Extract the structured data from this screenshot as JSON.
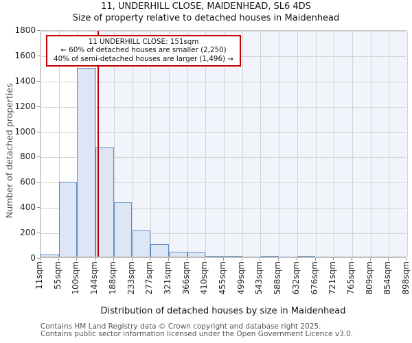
{
  "chart_data": {
    "type": "bar",
    "title": "11, UNDERHILL CLOSE, MAIDENHEAD, SL6 4DS",
    "subtitle": "Size of property relative to detached houses in Maidenhead",
    "xlabel": "Distribution of detached houses by size in Maidenhead",
    "ylabel": "Number of detached properties",
    "ylim": [
      0,
      1800
    ],
    "ytick_step": 200,
    "grid": true,
    "x_min": 11,
    "x_max": 898,
    "bin_edges": [
      11,
      55,
      100,
      144,
      188,
      233,
      277,
      321,
      366,
      410,
      455,
      499,
      543,
      588,
      632,
      676,
      721,
      765,
      809,
      854,
      898
    ],
    "x_tick_labels": [
      "11sqm",
      "55sqm",
      "100sqm",
      "144sqm",
      "188sqm",
      "233sqm",
      "277sqm",
      "321sqm",
      "366sqm",
      "410sqm",
      "455sqm",
      "499sqm",
      "543sqm",
      "588sqm",
      "632sqm",
      "676sqm",
      "721sqm",
      "765sqm",
      "809sqm",
      "854sqm",
      "898sqm"
    ],
    "values": [
      15,
      590,
      1490,
      860,
      430,
      205,
      100,
      40,
      30,
      8,
      8,
      0,
      8,
      0,
      8,
      0,
      0,
      0,
      0,
      0
    ],
    "marker": {
      "x_sqm": 151,
      "line_color": "#c00000"
    },
    "annotation": {
      "lines": [
        "11 UNDERHILL CLOSE: 151sqm",
        "← 60% of detached houses are smaller (2,250)",
        "40% of semi-detached houses are larger (1,496) →"
      ],
      "border_color": "#c00000"
    },
    "colors": {
      "bar_fill": "#dce6f5",
      "bar_edge": "#5c8cc8",
      "shade_right_of_marker": "#f1f4fb",
      "gridline": "#d4d4d4"
    },
    "footer": [
      "Contains HM Land Registry data © Crown copyright and database right 2025.",
      "Contains public sector information licensed under the Open Government Licence v3.0."
    ]
  }
}
